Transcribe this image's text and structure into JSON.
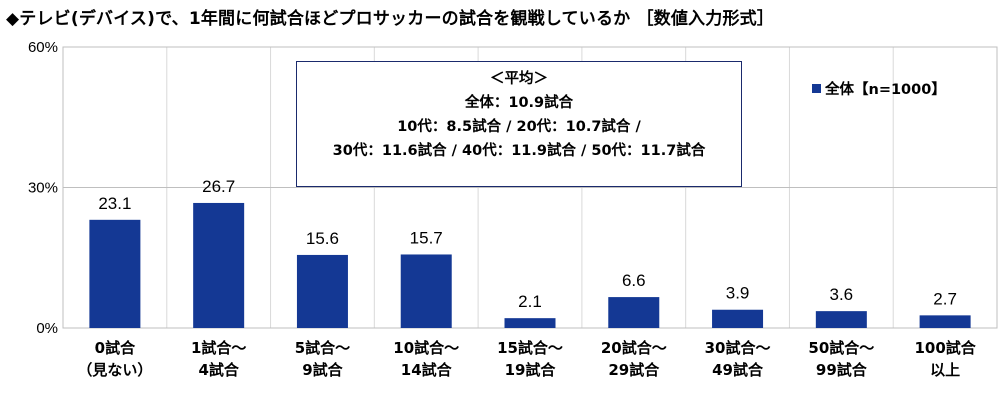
{
  "title": "◆テレビ(デバイス)で、1年間に何試合ほどプロサッカーの試合を観戦しているか ［数値入力形式］",
  "average_box": {
    "heading": "＜平均＞",
    "total": "全体：10.9試合",
    "line1": "10代：8.5試合 / 20代：10.7試合 /",
    "line2": "30代：11.6試合 / 40代：11.9試合 / 50代：11.7試合"
  },
  "chart_data": {
    "type": "bar",
    "categories": [
      [
        "0試合",
        "（見ない）"
      ],
      [
        "1試合～",
        "4試合"
      ],
      [
        "5試合～",
        "9試合"
      ],
      [
        "10試合～",
        "14試合"
      ],
      [
        "15試合～",
        "19試合"
      ],
      [
        "20試合～",
        "29試合"
      ],
      [
        "30試合～",
        "49試合"
      ],
      [
        "50試合～",
        "99試合"
      ],
      [
        "100試合",
        "以上"
      ]
    ],
    "series": [
      {
        "name": "全体【n=1000】",
        "values": [
          23.1,
          26.7,
          15.6,
          15.7,
          2.1,
          6.6,
          3.9,
          3.6,
          2.7
        ],
        "color": "#143894"
      }
    ],
    "value_labels": [
      "23.1",
      "26.7",
      "15.6",
      "15.7",
      "2.1",
      "6.6",
      "3.9",
      "3.6",
      "2.7"
    ],
    "y_ticks": [
      "0%",
      "30%",
      "60%"
    ],
    "ylim": [
      0,
      60
    ],
    "grid": true,
    "legend_position": "top-right"
  }
}
